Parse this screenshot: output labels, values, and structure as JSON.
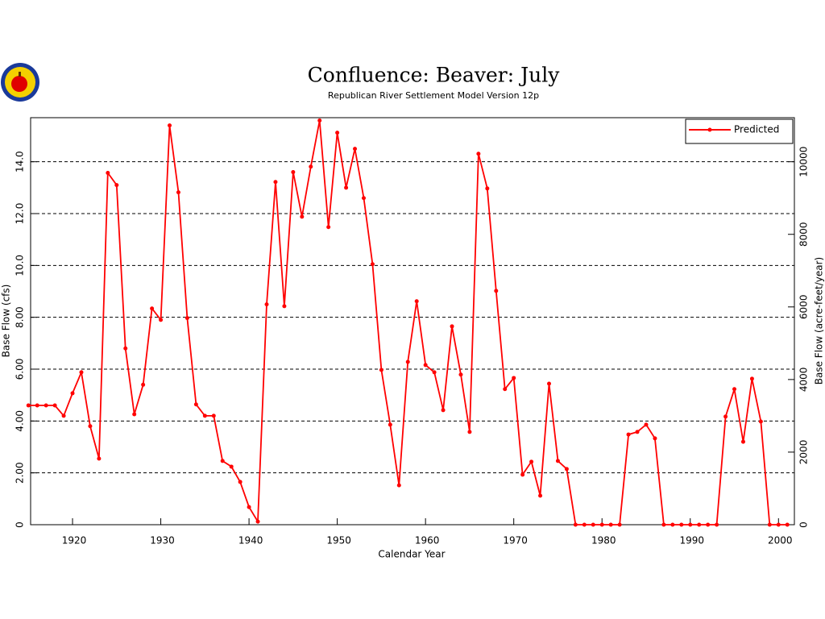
{
  "chart_data": {
    "type": "line",
    "title": "Confluence: Beaver: July",
    "subtitle": "Republican River Settlement Model Version 12p",
    "xlabel": "Calendar Year",
    "ylabel": "Base Flow (cfs)",
    "y2label": "Base Flow (acre-feet/year)",
    "x": [
      1915,
      1916,
      1917,
      1918,
      1919,
      1920,
      1921,
      1922,
      1923,
      1924,
      1925,
      1926,
      1927,
      1928,
      1929,
      1930,
      1931,
      1932,
      1933,
      1934,
      1935,
      1936,
      1937,
      1938,
      1939,
      1940,
      1941,
      1942,
      1943,
      1944,
      1945,
      1946,
      1947,
      1948,
      1949,
      1950,
      1951,
      1952,
      1953,
      1954,
      1955,
      1956,
      1957,
      1958,
      1959,
      1960,
      1961,
      1962,
      1963,
      1964,
      1965,
      1966,
      1967,
      1968,
      1969,
      1970,
      1971,
      1972,
      1973,
      1974,
      1975,
      1976,
      1977,
      1978,
      1979,
      1980,
      1981,
      1982,
      1983,
      1984,
      1985,
      1986,
      1987,
      1988,
      1989,
      1990,
      1991,
      1992,
      1993,
      1994,
      1995,
      1996,
      1997,
      1998,
      1999,
      2000,
      2001
    ],
    "series": [
      {
        "name": "Predicted",
        "color": "#ff0000",
        "values": [
          4.6,
          4.6,
          4.6,
          4.6,
          4.2,
          5.07,
          5.88,
          3.8,
          2.55,
          13.57,
          13.1,
          6.8,
          4.26,
          5.4,
          8.34,
          7.9,
          15.4,
          12.82,
          7.97,
          4.64,
          4.2,
          4.2,
          2.46,
          2.24,
          1.65,
          0.68,
          0.12,
          8.5,
          13.22,
          8.43,
          13.6,
          11.88,
          13.81,
          15.59,
          11.48,
          15.12,
          13.0,
          14.5,
          12.6,
          10.05,
          5.97,
          3.86,
          1.52,
          6.28,
          8.62,
          6.16,
          5.88,
          4.42,
          7.65,
          5.79,
          3.58,
          14.31,
          12.97,
          9.02,
          5.23,
          5.66,
          1.93,
          2.43,
          1.12,
          5.44,
          2.46,
          2.15,
          0,
          0,
          0,
          0,
          0,
          0,
          3.48,
          3.58,
          3.86,
          3.33,
          0,
          0,
          0,
          0,
          0,
          0,
          0,
          4.17,
          5.23,
          3.2,
          5.63,
          3.98,
          0,
          0,
          0
        ]
      }
    ],
    "xlim": [
      1915.25,
      2001.8
    ],
    "xticks": [
      1920,
      1930,
      1940,
      1950,
      1960,
      1970,
      1980,
      1990,
      2000
    ],
    "ylim": [
      0,
      15.7
    ],
    "yticks": [
      0,
      {
        "value": 2,
        "label": "2.00"
      },
      {
        "value": 4,
        "label": "4.00"
      },
      {
        "value": 6,
        "label": "6.00"
      },
      {
        "value": 8,
        "label": "8.00"
      },
      {
        "value": 10,
        "label": "10.0"
      },
      {
        "value": 12,
        "label": "12.0"
      },
      {
        "value": 14,
        "label": "14.0"
      }
    ],
    "y2lim": [
      0,
      11214
    ],
    "y2ticks": [
      0,
      2000,
      4000,
      6000,
      8000,
      10000
    ],
    "grid": true,
    "legend": "upper right"
  }
}
